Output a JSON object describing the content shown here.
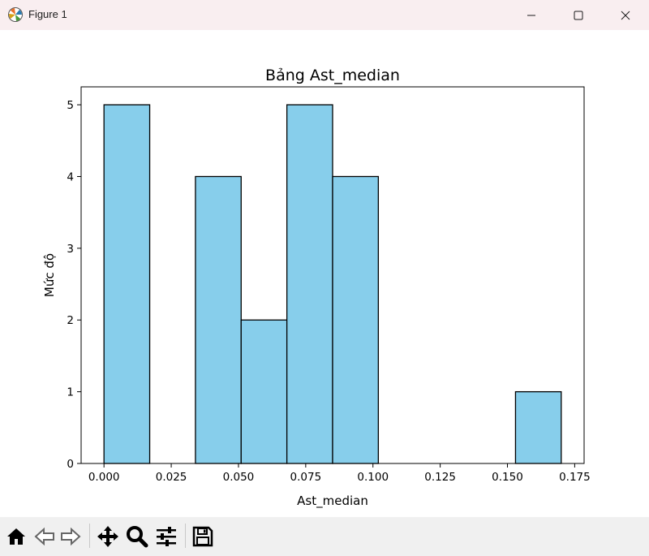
{
  "window": {
    "title": "Figure 1",
    "icons": [
      "matplotlib-icon",
      "minimize-icon",
      "maximize-icon",
      "close-icon"
    ]
  },
  "toolbar": {
    "icons": [
      "home-icon",
      "back-icon",
      "forward-icon",
      "pan-icon",
      "zoom-icon",
      "configure-icon",
      "save-icon"
    ]
  },
  "chart_data": {
    "type": "bar",
    "title": "Bảng Ast_median",
    "xlabel": "Ast_median",
    "ylabel": "Mức độ",
    "bin_edges": [
      0.0,
      0.017,
      0.034,
      0.051,
      0.068,
      0.085,
      0.102,
      0.119,
      0.136,
      0.153,
      0.17
    ],
    "values": [
      5,
      0,
      4,
      2,
      5,
      4,
      0,
      0,
      0,
      1
    ],
    "xlim": [
      -0.0085,
      0.1785
    ],
    "ylim": [
      0,
      5.25
    ],
    "xticks": [
      "0.000",
      "0.025",
      "0.050",
      "0.075",
      "0.100",
      "0.125",
      "0.150",
      "0.175"
    ],
    "yticks": [
      "0",
      "1",
      "2",
      "3",
      "4",
      "5"
    ],
    "bar_color": "#87ceeb",
    "edge_color": "#000000",
    "grid": false
  }
}
